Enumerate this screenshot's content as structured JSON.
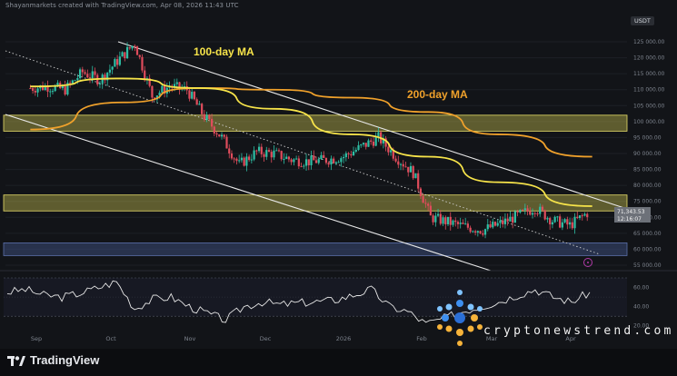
{
  "header": {
    "text": "Shayanmarkets created with TradingView.com, Apr 08, 2026 11:43 UTC"
  },
  "currency": "USDT",
  "labels": {
    "ma100": "100-day MA",
    "ma200": "200-day MA"
  },
  "colors": {
    "bull": "#2ebfa5",
    "bear": "#e04c5c",
    "ma100": "#f7e44a",
    "ma200": "#f0a12b",
    "zoneYellow": "#c9c051",
    "zoneBlue": "#3a4a78",
    "bg": "#121418"
  },
  "price_tag": {
    "price": "71,343.53",
    "countdown": "12:16:07"
  },
  "brand": {
    "footer_logo": "TradingView",
    "watermark": "cryptonewstrend.com"
  },
  "chart_data": {
    "type": "candlestick",
    "title": "",
    "ylabel": "",
    "x_ticks": [
      "Sep",
      "Oct",
      "Nov",
      "Dec",
      "2026",
      "Feb",
      "Mar",
      "Apr"
    ],
    "y_ticks": [
      "125 000.00",
      "120 000.00",
      "115 000.00",
      "110 000.00",
      "105 000.00",
      "100 000.00",
      "95 000.00",
      "90 000.00",
      "85 000.00",
      "80 000.00",
      "75 000.00",
      "70 000.00",
      "65 000.00",
      "60 000.00",
      "55 000.00"
    ],
    "ylim": [
      53000,
      129000
    ],
    "candles_close_approx": [
      [
        "2025-08-25",
        110500
      ],
      [
        "2025-09-01",
        111000
      ],
      [
        "2025-09-08",
        110000
      ],
      [
        "2025-09-15",
        115500
      ],
      [
        "2025-09-22",
        113000
      ],
      [
        "2025-09-29",
        119000
      ],
      [
        "2025-10-06",
        124500
      ],
      [
        "2025-10-13",
        108000
      ],
      [
        "2025-10-20",
        111000
      ],
      [
        "2025-10-27",
        110000
      ],
      [
        "2025-11-03",
        101500
      ],
      [
        "2025-11-10",
        95000
      ],
      [
        "2025-11-17",
        86500
      ],
      [
        "2025-11-24",
        90500
      ],
      [
        "2025-12-01",
        90000
      ],
      [
        "2025-12-08",
        88000
      ],
      [
        "2025-12-15",
        87500
      ],
      [
        "2025-12-22",
        88000
      ],
      [
        "2025-12-29",
        89000
      ],
      [
        "2026-01-05",
        92000
      ],
      [
        "2026-01-12",
        95000
      ],
      [
        "2026-01-19",
        89000
      ],
      [
        "2026-01-26",
        84000
      ],
      [
        "2026-02-02",
        70000
      ],
      [
        "2026-02-09",
        68500
      ],
      [
        "2026-02-16",
        67000
      ],
      [
        "2026-02-23",
        66000
      ],
      [
        "2026-03-02",
        68000
      ],
      [
        "2026-03-09",
        70500
      ],
      [
        "2026-03-16",
        73000
      ],
      [
        "2026-03-23",
        69000
      ],
      [
        "2026-03-30",
        67500
      ],
      [
        "2026-04-06",
        71343.53
      ]
    ],
    "ma100_approx": [
      [
        "2025-08-25",
        111000
      ],
      [
        "2025-10-01",
        113500
      ],
      [
        "2025-11-01",
        110500
      ],
      [
        "2025-12-01",
        104000
      ],
      [
        "2026-01-01",
        96000
      ],
      [
        "2026-02-01",
        89000
      ],
      [
        "2026-03-01",
        81000
      ],
      [
        "2026-04-08",
        73500
      ]
    ],
    "ma200_approx": [
      [
        "2025-08-25",
        97500
      ],
      [
        "2025-10-01",
        106000
      ],
      [
        "2025-11-01",
        110500
      ],
      [
        "2025-12-01",
        110000
      ],
      [
        "2026-01-01",
        107500
      ],
      [
        "2026-02-01",
        103000
      ],
      [
        "2026-03-01",
        96000
      ],
      [
        "2026-04-08",
        89000
      ]
    ],
    "zones": [
      {
        "type": "resistance",
        "from": 97000,
        "to": 102000,
        "color": "yellow"
      },
      {
        "type": "resistance",
        "from": 72000,
        "to": 77000,
        "color": "yellow"
      },
      {
        "type": "support",
        "from": 58000,
        "to": 62000,
        "color": "blue"
      }
    ],
    "rsi": {
      "y_ticks": [
        "60.00",
        "40.00",
        "20.00"
      ],
      "values_approx": [
        55,
        58,
        52,
        50,
        54,
        60,
        66,
        38,
        48,
        50,
        40,
        33,
        26,
        40,
        45,
        42,
        44,
        45,
        47,
        52,
        58,
        40,
        35,
        22,
        28,
        35,
        40,
        45,
        52,
        58,
        50,
        45,
        55
      ]
    }
  }
}
